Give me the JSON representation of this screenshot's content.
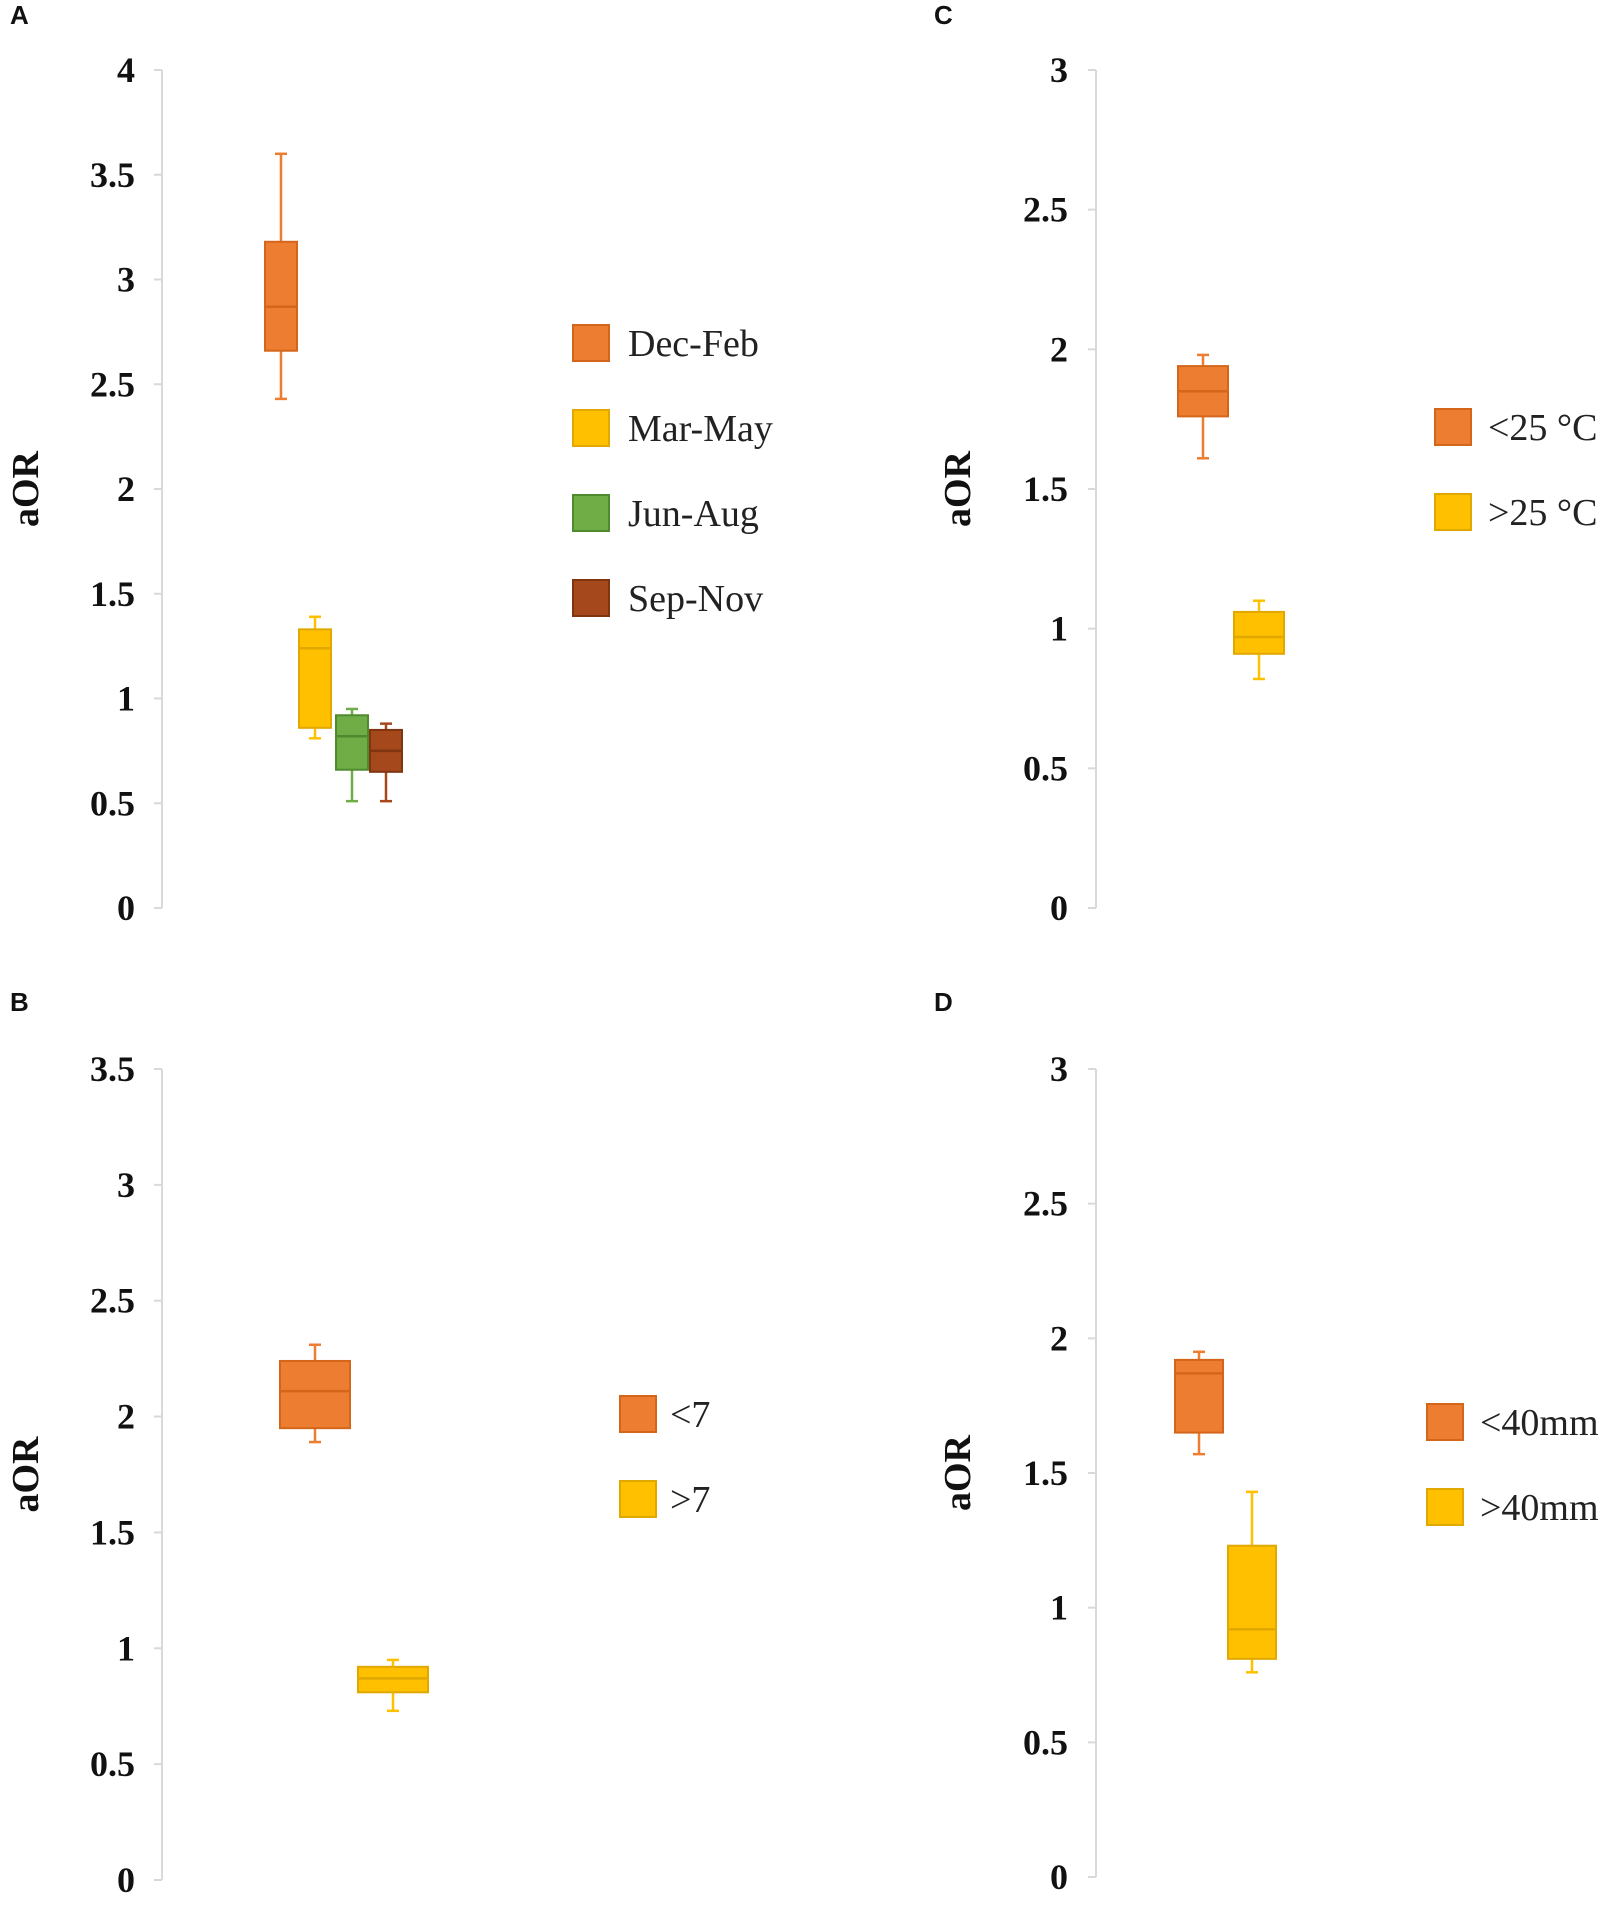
{
  "chart_data": [
    {
      "panel": "A",
      "type": "box",
      "ylabel": "aOR",
      "ylim": [
        0,
        4
      ],
      "yticks": [
        "0",
        "0.5",
        "1",
        "1.5",
        "2",
        "2.5",
        "3",
        "3.5",
        "4"
      ],
      "series": [
        {
          "name": "Dec-Feb",
          "color": "#ED7D31",
          "stroke": "#D4661B",
          "min": 2.43,
          "q1": 2.66,
          "median": 2.87,
          "q3": 3.18,
          "max": 3.6
        },
        {
          "name": "Mar-May",
          "color": "#FFC000",
          "stroke": "#E0A800",
          "min": 0.81,
          "q1": 0.86,
          "median": 1.24,
          "q3": 1.33,
          "max": 1.39
        },
        {
          "name": "Jun-Aug",
          "color": "#70AD47",
          "stroke": "#4E8A2E",
          "min": 0.51,
          "q1": 0.66,
          "median": 0.82,
          "q3": 0.92,
          "max": 0.95
        },
        {
          "name": "Sep-Nov",
          "color": "#A5481C",
          "stroke": "#7E3510",
          "min": 0.51,
          "q1": 0.65,
          "median": 0.75,
          "q3": 0.85,
          "max": 0.88
        }
      ]
    },
    {
      "panel": "B",
      "type": "box",
      "ylabel": "aOR",
      "ylim": [
        0,
        3.5
      ],
      "yticks": [
        "0",
        "0.5",
        "1",
        "1.5",
        "2",
        "2.5",
        "3",
        "3.5"
      ],
      "series": [
        {
          "name": "<7",
          "color": "#ED7D31",
          "stroke": "#D4661B",
          "min": 1.89,
          "q1": 1.95,
          "median": 2.11,
          "q3": 2.24,
          "max": 2.31
        },
        {
          "name": ">7",
          "color": "#FFC000",
          "stroke": "#E0A800",
          "min": 0.73,
          "q1": 0.81,
          "median": 0.87,
          "q3": 0.92,
          "max": 0.95
        }
      ]
    },
    {
      "panel": "C",
      "type": "box",
      "ylabel": "aOR",
      "ylim": [
        0,
        3
      ],
      "yticks": [
        "0",
        "0.5",
        "1",
        "1.5",
        "2",
        "2.5",
        "3"
      ],
      "series": [
        {
          "name": "<25 °C",
          "color": "#ED7D31",
          "stroke": "#D4661B",
          "min": 1.61,
          "q1": 1.76,
          "median": 1.85,
          "q3": 1.94,
          "max": 1.98
        },
        {
          "name": ">25 °C",
          "color": "#FFC000",
          "stroke": "#E0A800",
          "min": 0.82,
          "q1": 0.91,
          "median": 0.97,
          "q3": 1.06,
          "max": 1.1
        }
      ]
    },
    {
      "panel": "D",
      "type": "box",
      "ylabel": "aOR",
      "ylim": [
        0,
        3
      ],
      "yticks": [
        "0",
        "0.5",
        "1",
        "1.5",
        "2",
        "2.5",
        "3"
      ],
      "series": [
        {
          "name": "<40mm",
          "color": "#ED7D31",
          "stroke": "#D4661B",
          "min": 1.57,
          "q1": 1.65,
          "median": 1.87,
          "q3": 1.92,
          "max": 1.95
        },
        {
          "name": ">40mm",
          "color": "#FFC000",
          "stroke": "#E0A800",
          "min": 0.76,
          "q1": 0.81,
          "median": 0.92,
          "q3": 1.23,
          "max": 1.43
        }
      ]
    }
  ]
}
